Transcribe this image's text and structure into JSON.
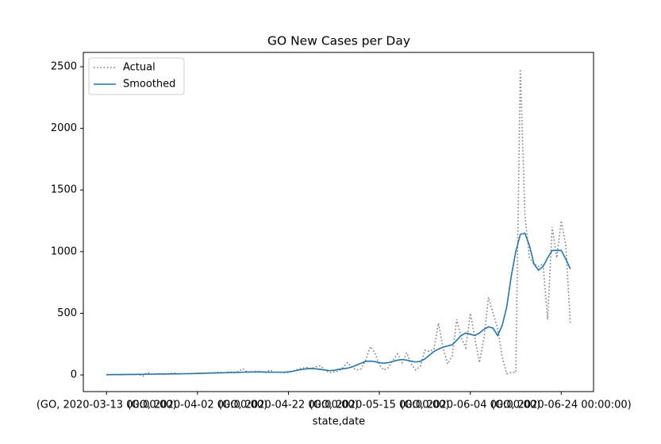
{
  "chart_data": {
    "type": "line",
    "title": "GO New Cases per Day",
    "x_label": "state,date",
    "categories": [
      "(GO, 2020-03-13 00:00:00)",
      null,
      null,
      null,
      null,
      null,
      null,
      null,
      null,
      null,
      null,
      null,
      null,
      null,
      null,
      null,
      null,
      null,
      null,
      null,
      "(GO, 2020-04-02 00:00:00)",
      null,
      null,
      null,
      null,
      null,
      null,
      null,
      null,
      null,
      null,
      null,
      null,
      null,
      null,
      null,
      null,
      null,
      null,
      null,
      "(GO, 2020-04-22 00:00:00)",
      null,
      null,
      null,
      null,
      null,
      null,
      null,
      null,
      null,
      null,
      null,
      null,
      null,
      null,
      null,
      null,
      null,
      null,
      null,
      "(GO, 2020-05-15 00:00:00)",
      null,
      null,
      null,
      null,
      null,
      null,
      null,
      null,
      null,
      null,
      null,
      null,
      null,
      null,
      null,
      null,
      null,
      null,
      null,
      "(GO, 2020-06-04 00:00:00)",
      null,
      null,
      null,
      null,
      null,
      null,
      null,
      null,
      null,
      null,
      null,
      null,
      null,
      null,
      null,
      null,
      null,
      null,
      null,
      "(GO, 2020-06-24 00:00:00)",
      null,
      null
    ],
    "series": [
      {
        "name": "Actual",
        "color": "#808080",
        "dash": "dotted",
        "values": [
          0,
          2,
          3,
          1,
          5,
          4,
          3,
          6,
          -10,
          20,
          5,
          8,
          10,
          6,
          12,
          15,
          8,
          10,
          12,
          10,
          14,
          12,
          18,
          15,
          20,
          22,
          18,
          25,
          20,
          28,
          50,
          22,
          25,
          30,
          28,
          20,
          40,
          22,
          25,
          18,
          20,
          30,
          45,
          55,
          60,
          50,
          65,
          75,
          40,
          20,
          25,
          30,
          60,
          100,
          60,
          40,
          50,
          120,
          230,
          180,
          80,
          40,
          60,
          120,
          170,
          100,
          180,
          90,
          40,
          70,
          200,
          190,
          210,
          420,
          220,
          90,
          150,
          450,
          300,
          220,
          500,
          300,
          100,
          300,
          630,
          500,
          380,
          150,
          10,
          20,
          20,
          2480,
          1300,
          950,
          900,
          880,
          900,
          450,
          1200,
          950,
          1250,
          1050,
          410
        ]
      },
      {
        "name": "Smoothed",
        "color": "#1f77b4",
        "dash": "solid",
        "values": [
          2,
          2,
          3,
          3,
          3,
          4,
          4,
          5,
          5,
          6,
          6,
          7,
          7,
          8,
          8,
          9,
          9,
          10,
          10,
          11,
          12,
          13,
          14,
          15,
          16,
          17,
          18,
          19,
          20,
          21,
          22,
          23,
          24,
          24,
          24,
          23,
          22,
          22,
          22,
          22,
          25,
          30,
          38,
          45,
          50,
          52,
          50,
          45,
          40,
          35,
          38,
          45,
          50,
          55,
          65,
          80,
          95,
          110,
          112,
          108,
          100,
          95,
          100,
          110,
          120,
          125,
          120,
          112,
          105,
          110,
          130,
          160,
          190,
          210,
          225,
          235,
          245,
          280,
          320,
          340,
          330,
          320,
          340,
          370,
          390,
          380,
          320,
          400,
          550,
          800,
          1000,
          1140,
          1150,
          1050,
          900,
          850,
          880,
          950,
          1010,
          1010,
          1010,
          940,
          860
        ]
      }
    ],
    "xlim": [
      -5.1,
      107.1
    ],
    "ylim": [
      -135,
      2616
    ],
    "yticks": [
      0,
      500,
      1000,
      1500,
      2000,
      2500
    ],
    "grid": false,
    "legend": "upper left"
  }
}
